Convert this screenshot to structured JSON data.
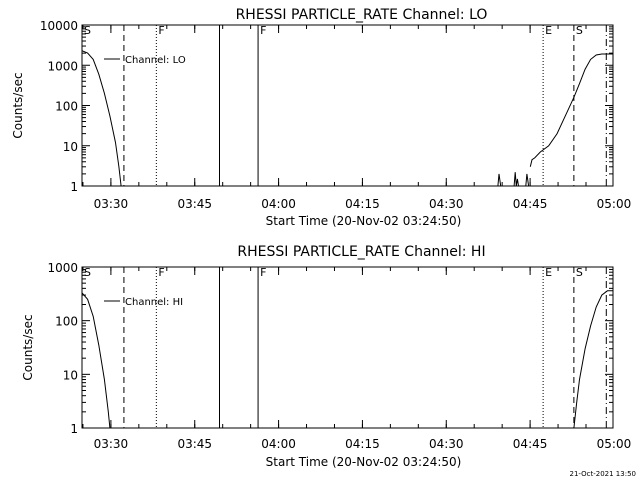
{
  "footer": {
    "timestamp": "21-Oct-2021 13:50"
  },
  "chart_data": [
    {
      "type": "line",
      "title": "RHESSI PARTICLE_RATE Channel: LO",
      "xlabel": "Start Time (20-Nov-02 03:24:50)",
      "ylabel": "Counts/sec",
      "yscale": "log",
      "ylim": [
        1,
        10000
      ],
      "xlim_minutes_from_start": [
        0,
        95
      ],
      "x_ticks": [
        {
          "label": "03:30",
          "min": 5.17
        },
        {
          "label": "03:45",
          "min": 20.17
        },
        {
          "label": "04:00",
          "min": 35.17
        },
        {
          "label": "04:15",
          "min": 50.17
        },
        {
          "label": "04:30",
          "min": 65.17
        },
        {
          "label": "04:45",
          "min": 80.17
        },
        {
          "label": "05:00",
          "min": 95.17
        }
      ],
      "y_ticks": [
        {
          "label": "1",
          "value": 1
        },
        {
          "label": "10",
          "value": 10
        },
        {
          "label": "100",
          "value": 100
        },
        {
          "label": "1000",
          "value": 1000
        },
        {
          "label": "10000",
          "value": 10000
        }
      ],
      "legend": {
        "label": "Channel: LO",
        "position": "top-left"
      },
      "markers": [
        {
          "label": "S",
          "min": 0,
          "style": "dashed",
          "show_line": false
        },
        {
          "label": "",
          "min": 7.5,
          "style": "dashed",
          "show_line": true
        },
        {
          "label": "F",
          "min": 13.3,
          "style": "dotted",
          "show_line": true
        },
        {
          "label": "",
          "min": 24.6,
          "style": "solid",
          "show_line": true
        },
        {
          "label": "F",
          "min": 31.5,
          "style": "solid",
          "show_line": true
        },
        {
          "label": "E",
          "min": 82.5,
          "style": "dotted",
          "show_line": true
        },
        {
          "label": "S",
          "min": 88.0,
          "style": "dashed",
          "show_line": true
        },
        {
          "label": "",
          "min": 93.8,
          "style": "dashdot",
          "show_line": true
        }
      ],
      "series": [
        {
          "name": "Channel: LO",
          "segments": [
            {
              "min": [
                0,
                1.0,
                2.0,
                3.0,
                4.0,
                5.0,
                6.0,
                6.6,
                7.0
              ],
              "values": [
                2300,
                2000,
                1400,
                600,
                200,
                55,
                12,
                3,
                1
              ]
            },
            {
              "min": [
                74.4,
                74.6,
                74.9
              ],
              "values": [
                1,
                2,
                1
              ]
            },
            {
              "min": [
                77.3,
                77.5,
                77.7,
                77.9,
                78.1
              ],
              "values": [
                1,
                2.2,
                1,
                1.5,
                1
              ]
            },
            {
              "min": [
                79.4,
                79.6,
                79.9
              ],
              "values": [
                1,
                2,
                1
              ]
            },
            {
              "min": [
                80.2,
                80.5,
                81,
                82,
                83.5,
                85,
                87,
                88,
                89,
                90,
                91,
                92,
                93,
                94,
                95
              ],
              "values": [
                3,
                4.5,
                5,
                7,
                10,
                20,
                80,
                160,
                350,
                800,
                1400,
                1800,
                1900,
                1900,
                1900
              ]
            }
          ]
        }
      ]
    },
    {
      "type": "line",
      "title": "RHESSI PARTICLE_RATE Channel: HI",
      "xlabel": "Start Time (20-Nov-02 03:24:50)",
      "ylabel": "Counts/sec",
      "yscale": "log",
      "ylim": [
        1,
        1000
      ],
      "xlim_minutes_from_start": [
        0,
        95
      ],
      "x_ticks": [
        {
          "label": "03:30",
          "min": 5.17
        },
        {
          "label": "03:45",
          "min": 20.17
        },
        {
          "label": "04:00",
          "min": 35.17
        },
        {
          "label": "04:15",
          "min": 50.17
        },
        {
          "label": "04:30",
          "min": 65.17
        },
        {
          "label": "04:45",
          "min": 80.17
        },
        {
          "label": "05:00",
          "min": 95.17
        }
      ],
      "y_ticks": [
        {
          "label": "1",
          "value": 1
        },
        {
          "label": "10",
          "value": 10
        },
        {
          "label": "100",
          "value": 100
        },
        {
          "label": "1000",
          "value": 1000
        }
      ],
      "legend": {
        "label": "Channel: HI",
        "position": "top-left"
      },
      "markers": [
        {
          "label": "S",
          "min": 0,
          "style": "dashed",
          "show_line": false
        },
        {
          "label": "",
          "min": 7.5,
          "style": "dashed",
          "show_line": true
        },
        {
          "label": "F",
          "min": 13.3,
          "style": "dotted",
          "show_line": true
        },
        {
          "label": "",
          "min": 24.6,
          "style": "solid",
          "show_line": true
        },
        {
          "label": "F",
          "min": 31.5,
          "style": "solid",
          "show_line": true
        },
        {
          "label": "E",
          "min": 82.5,
          "style": "dotted",
          "show_line": true
        },
        {
          "label": "S",
          "min": 88.0,
          "style": "dashed",
          "show_line": true
        },
        {
          "label": "",
          "min": 93.8,
          "style": "dashdot",
          "show_line": true
        }
      ],
      "series": [
        {
          "name": "Channel: HI",
          "segments": [
            {
              "min": [
                0,
                1.0,
                2.0,
                3.0,
                4.0,
                4.7,
                5.0
              ],
              "values": [
                330,
                250,
                120,
                35,
                8,
                2,
                1
              ]
            },
            {
              "min": [
                88.0,
                88.5,
                89,
                90,
                91,
                92,
                93,
                94,
                95
              ],
              "values": [
                1,
                3,
                8,
                30,
                80,
                180,
                300,
                360,
                360
              ]
            }
          ]
        }
      ]
    }
  ]
}
